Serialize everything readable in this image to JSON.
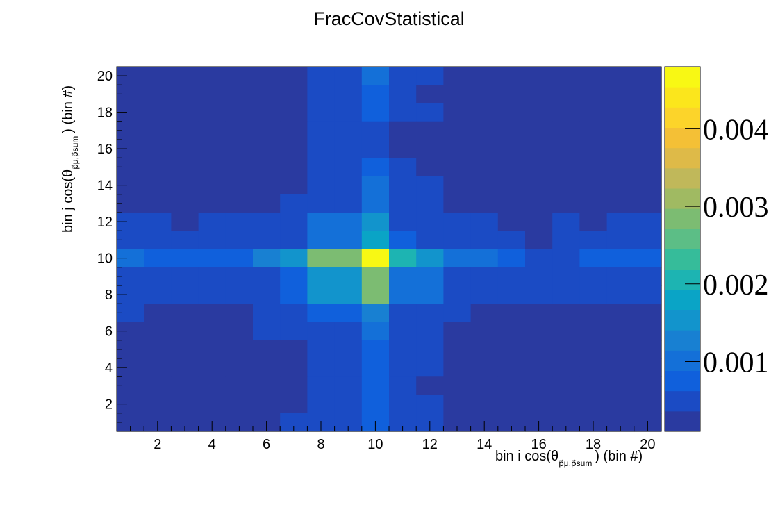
{
  "chart_data": {
    "type": "heatmap",
    "title": "FracCovStatistical",
    "xlabel": "bin i cos(θ",
    "xlabel_sub": "p⃗μ,p⃗sum",
    "xlabel_tail": ") (bin #)",
    "ylabel": "bin j cos(θ",
    "ylabel_sub": "p⃗μ,p⃗sum",
    "ylabel_tail": ") (bin #)",
    "xlim": [
      0.5,
      20.5
    ],
    "ylim": [
      0.5,
      20.5
    ],
    "x_ticks": [
      2,
      4,
      6,
      8,
      10,
      12,
      14,
      16,
      18,
      20
    ],
    "y_ticks": [
      2,
      4,
      6,
      8,
      10,
      12,
      14,
      16,
      18,
      20
    ],
    "z_range": [
      0.0001,
      0.0048
    ],
    "z_ticks": [
      "0.001",
      "0.002",
      "0.003",
      "0.004"
    ],
    "z_tick_values": [
      0.001,
      0.002,
      0.003,
      0.004
    ],
    "colormap": [
      "#2a3aa0",
      "#1b4bc4",
      "#1060dc",
      "#1470d8",
      "#1880d2",
      "#1294cc",
      "#0aa4c6",
      "#1db4b2",
      "#36bc9a",
      "#5cbe86",
      "#7cbc72",
      "#a0ba62",
      "#c0b85a",
      "#deba48",
      "#f4c036",
      "#fcd42a",
      "#fbe61c",
      "#f8f814"
    ],
    "grid": false,
    "rows_top_to_bottom": [
      [
        0.0001,
        0.0001,
        0.0001,
        0.0001,
        0.0001,
        0.0001,
        0.0001,
        0.00045,
        0.00045,
        0.0009,
        0.00045,
        0.00045,
        0.0001,
        0.0001,
        0.0001,
        0.0001,
        0.0001,
        0.0001,
        0.0001,
        0.0001
      ],
      [
        0.0001,
        0.0001,
        0.0001,
        0.0001,
        0.0001,
        0.0001,
        0.0001,
        0.00045,
        0.00045,
        0.0007,
        0.00045,
        0.0001,
        0.0001,
        0.0001,
        0.0001,
        0.0001,
        0.0001,
        0.0001,
        0.0001,
        0.0001
      ],
      [
        0.0001,
        0.0001,
        0.0001,
        0.0001,
        0.0001,
        0.0001,
        0.0001,
        0.00045,
        0.00045,
        0.0007,
        0.00045,
        0.00045,
        0.0001,
        0.0001,
        0.0001,
        0.0001,
        0.0001,
        0.0001,
        0.0001,
        0.0001
      ],
      [
        0.0001,
        0.0001,
        0.0001,
        0.0001,
        0.0001,
        0.0001,
        0.0001,
        0.00045,
        0.00045,
        0.00055,
        0.0001,
        0.0001,
        0.0001,
        0.0001,
        0.0001,
        0.0001,
        0.0001,
        0.0001,
        0.0001,
        0.0001
      ],
      [
        0.0001,
        0.0001,
        0.0001,
        0.0001,
        0.0001,
        0.0001,
        0.0001,
        0.00045,
        0.00045,
        0.00055,
        0.0001,
        0.0001,
        0.0001,
        0.0001,
        0.0001,
        0.0001,
        0.0001,
        0.0001,
        0.0001,
        0.0001
      ],
      [
        0.0001,
        0.0001,
        0.0001,
        0.0001,
        0.0001,
        0.0001,
        0.0001,
        0.00045,
        0.00045,
        0.0007,
        0.00045,
        0.0001,
        0.0001,
        0.0001,
        0.0001,
        0.0001,
        0.0001,
        0.0001,
        0.0001,
        0.0001
      ],
      [
        0.0001,
        0.0001,
        0.0001,
        0.0001,
        0.0001,
        0.0001,
        0.0001,
        0.0006,
        0.0006,
        0.0009,
        0.00045,
        0.00045,
        0.0001,
        0.0001,
        0.0001,
        0.0001,
        0.0001,
        0.0001,
        0.0001,
        0.0001
      ],
      [
        0.0001,
        0.0001,
        0.0001,
        0.0001,
        0.0001,
        0.0001,
        0.00045,
        0.0006,
        0.0006,
        0.0009,
        0.00045,
        0.00045,
        0.0001,
        0.0001,
        0.0001,
        0.0001,
        0.0001,
        0.0001,
        0.0001,
        0.0001
      ],
      [
        0.00045,
        0.00045,
        0.0001,
        0.00045,
        0.00045,
        0.00045,
        0.0006,
        0.0011,
        0.0011,
        0.0016,
        0.0006,
        0.0006,
        0.00045,
        0.00045,
        0.0001,
        0.0001,
        0.00045,
        0.0001,
        0.00045,
        0.00045
      ],
      [
        0.00045,
        0.00045,
        0.00045,
        0.00045,
        0.00045,
        0.00045,
        0.0006,
        0.0011,
        0.0011,
        0.0019,
        0.0008,
        0.0006,
        0.00045,
        0.00045,
        0.00045,
        0.0001,
        0.00045,
        0.00045,
        0.00045,
        0.00045
      ],
      [
        0.001,
        0.0008,
        0.0008,
        0.0008,
        0.0008,
        0.0013,
        0.0016,
        0.0029,
        0.0029,
        0.0048,
        0.0021,
        0.0016,
        0.001,
        0.001,
        0.0008,
        0.0006,
        0.0006,
        0.0008,
        0.0008,
        0.0008
      ],
      [
        0.0006,
        0.00045,
        0.00045,
        0.00045,
        0.0006,
        0.0006,
        0.0008,
        0.0016,
        0.0016,
        0.0029,
        0.0011,
        0.0011,
        0.0006,
        0.0006,
        0.00045,
        0.00045,
        0.00045,
        0.00045,
        0.00045,
        0.00045
      ],
      [
        0.0006,
        0.00045,
        0.00045,
        0.00045,
        0.0006,
        0.0006,
        0.0008,
        0.0016,
        0.0016,
        0.0029,
        0.0011,
        0.0011,
        0.0006,
        0.0006,
        0.00045,
        0.00045,
        0.00045,
        0.00045,
        0.00045,
        0.00045
      ],
      [
        0.00045,
        0.0001,
        0.0001,
        0.0001,
        0.0001,
        0.00045,
        0.00045,
        0.0008,
        0.0008,
        0.0013,
        0.00045,
        0.00045,
        0.00045,
        0.0001,
        0.0001,
        0.0001,
        0.0001,
        0.0001,
        0.0001,
        0.0001
      ],
      [
        0.0001,
        0.0001,
        0.0001,
        0.0001,
        0.0001,
        0.00045,
        0.00045,
        0.0006,
        0.0006,
        0.0009,
        0.00045,
        0.00045,
        0.0001,
        0.0001,
        0.0001,
        0.0001,
        0.0001,
        0.0001,
        0.0001,
        0.0001
      ],
      [
        0.0001,
        0.0001,
        0.0001,
        0.0001,
        0.0001,
        0.0001,
        0.0001,
        0.0006,
        0.0006,
        0.0007,
        0.00045,
        0.00045,
        0.0001,
        0.0001,
        0.0001,
        0.0001,
        0.0001,
        0.0001,
        0.0001,
        0.0001
      ],
      [
        0.0001,
        0.0001,
        0.0001,
        0.0001,
        0.0001,
        0.0001,
        0.0001,
        0.00045,
        0.00045,
        0.0007,
        0.00045,
        0.00045,
        0.0001,
        0.0001,
        0.0001,
        0.0001,
        0.0001,
        0.0001,
        0.0001,
        0.0001
      ],
      [
        0.0001,
        0.0001,
        0.0001,
        0.0001,
        0.0001,
        0.0001,
        0.0001,
        0.00045,
        0.00045,
        0.0007,
        0.00045,
        0.0001,
        0.0001,
        0.0001,
        0.0001,
        0.0001,
        0.0001,
        0.0001,
        0.0001,
        0.0001
      ],
      [
        0.0001,
        0.0001,
        0.0001,
        0.0001,
        0.0001,
        0.0001,
        0.0001,
        0.00045,
        0.00045,
        0.0007,
        0.00045,
        0.00045,
        0.0001,
        0.0001,
        0.0001,
        0.0001,
        0.0001,
        0.0001,
        0.0001,
        0.0001
      ],
      [
        0.0001,
        0.0001,
        0.0001,
        0.0001,
        0.0001,
        0.0001,
        0.00045,
        0.0006,
        0.0006,
        0.0008,
        0.00045,
        0.00045,
        0.0001,
        0.0001,
        0.0001,
        0.0001,
        0.0001,
        0.0001,
        0.0001,
        0.0001
      ]
    ]
  }
}
